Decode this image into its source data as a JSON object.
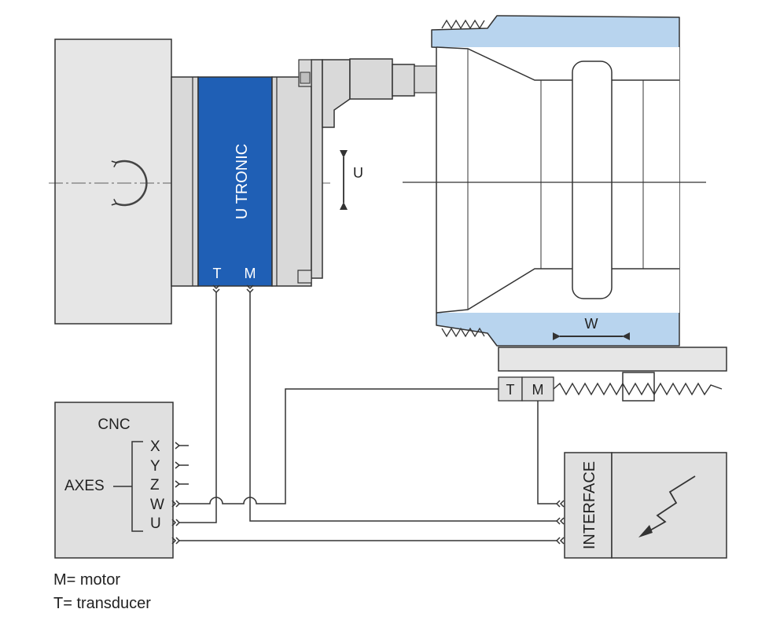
{
  "labels": {
    "u_tronic": "U TRONIC",
    "head_T": "T",
    "head_M": "M",
    "u_axis": "U",
    "w_axis": "W",
    "slide_T": "T",
    "slide_M": "M",
    "cnc": "CNC",
    "axes": "AXES",
    "axis_x": "X",
    "axis_y": "Y",
    "axis_z": "Z",
    "axis_w": "W",
    "axis_u": "U",
    "interface": "INTERFACE"
  },
  "legend": {
    "motor": "M= motor",
    "transducer": "T= transducer"
  },
  "colors": {
    "utronic_blue": "#1f5fb5",
    "workpiece_blue": "#b8d4ee",
    "machine_gray": "#d9d9d9",
    "line": "#333333"
  },
  "icons": {
    "rotation": "rotation-arrow-icon",
    "u_motion": "vertical-double-arrow-icon",
    "w_motion": "horizontal-double-arrow-icon",
    "signal": "lightning-bolt-icon"
  }
}
